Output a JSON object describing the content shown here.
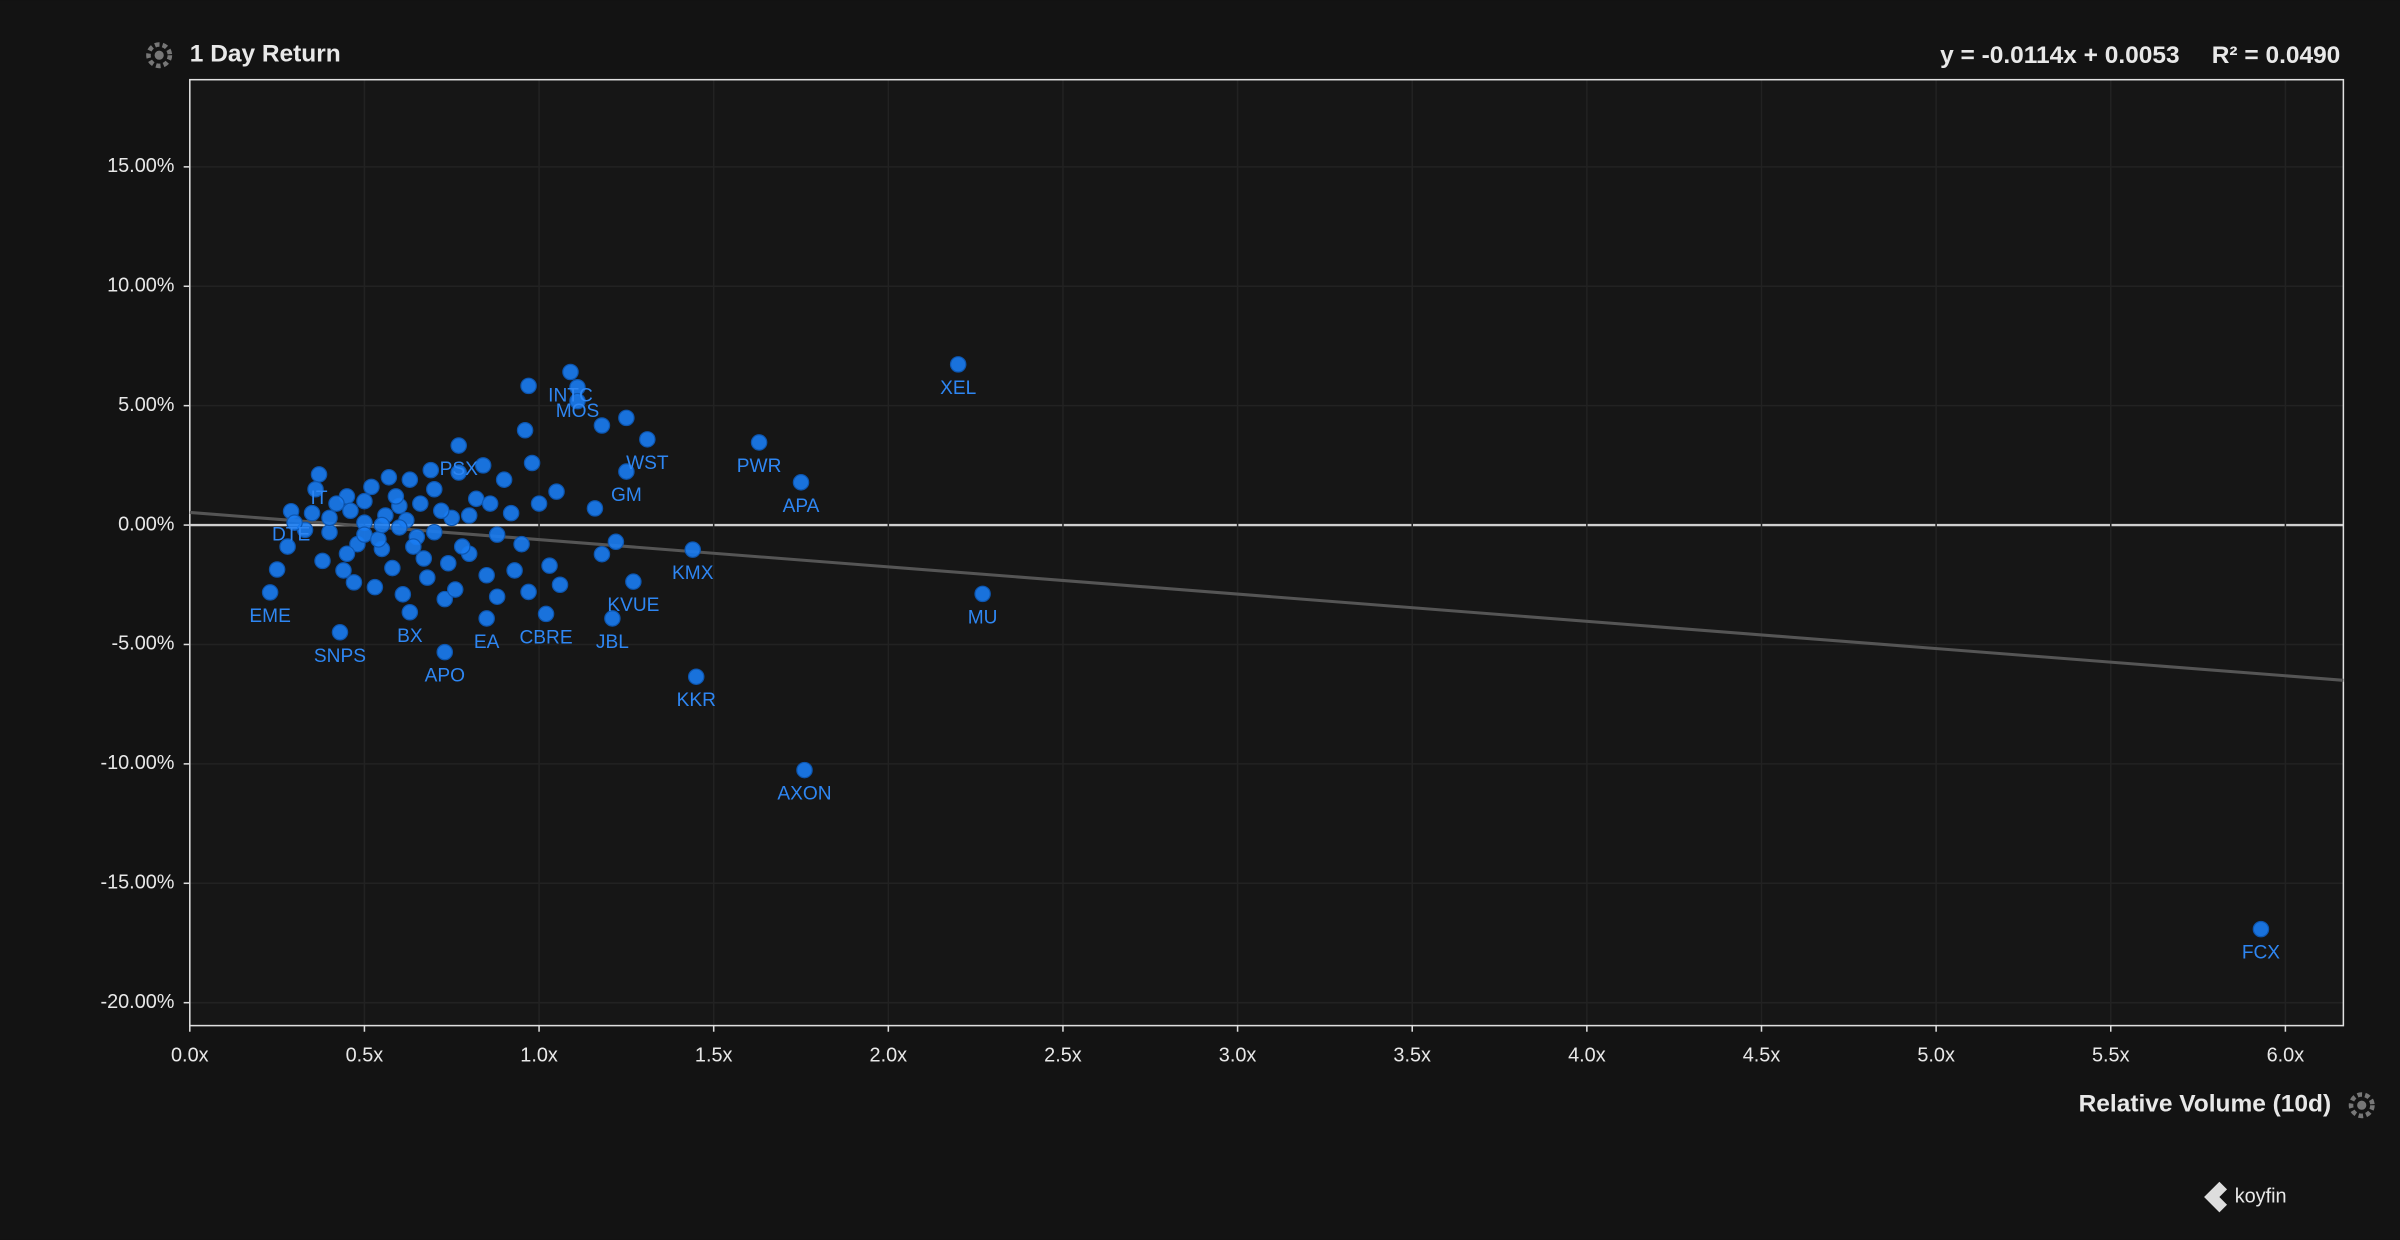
{
  "chart_data": {
    "type": "scatter",
    "title": "1 Day Return",
    "x_label": "Relative Volume (10d)",
    "equation": "y = -0.0114x + 0.0053",
    "r_squared": "R² = 0.0490",
    "brand": "koyfin",
    "xlim": [
      0,
      6.166
    ],
    "ylim": [
      -20.96,
      18.65
    ],
    "xticks": [
      {
        "value": 0,
        "label": "0.0x"
      },
      {
        "value": 0.5,
        "label": "0.5x"
      },
      {
        "value": 1,
        "label": "1.0x"
      },
      {
        "value": 1.5,
        "label": "1.5x"
      },
      {
        "value": 2,
        "label": "2.0x"
      },
      {
        "value": 2.5,
        "label": "2.5x"
      },
      {
        "value": 3,
        "label": "3.0x"
      },
      {
        "value": 3.5,
        "label": "3.5x"
      },
      {
        "value": 4,
        "label": "4.0x"
      },
      {
        "value": 4.5,
        "label": "4.5x"
      },
      {
        "value": 5,
        "label": "5.0x"
      },
      {
        "value": 5.5,
        "label": "5.5x"
      },
      {
        "value": 6,
        "label": "6.0x"
      }
    ],
    "yticks": [
      {
        "value": 15,
        "label": "15.00%"
      },
      {
        "value": 10,
        "label": "10.00%"
      },
      {
        "value": 5,
        "label": "5.00%"
      },
      {
        "value": 0,
        "label": "0.00%"
      },
      {
        "value": -5,
        "label": "-5.00%"
      },
      {
        "value": -10,
        "label": "-10.00%"
      },
      {
        "value": -15,
        "label": "-15.00%"
      },
      {
        "value": -20,
        "label": "-20.00%"
      }
    ],
    "grid": true,
    "trendline": {
      "x": [
        0,
        6.166
      ],
      "values": [
        0.53,
        -6.5
      ],
      "color": "#555555"
    },
    "series": [
      {
        "color": "#1a7cf2",
        "labels": [
          "INTC",
          "MOS",
          "XEL",
          "PSX",
          "WST",
          "PWR",
          "APA",
          "IT",
          "GM",
          "DTE",
          "KMX",
          "KVUE",
          "MU",
          "EME",
          "SNPS",
          "BX",
          "EA",
          "CBRE",
          "JBL",
          "APO",
          "KKR",
          "AXON",
          "FCX",
          null,
          null,
          null,
          null,
          null,
          null,
          null,
          null,
          null,
          null,
          null,
          null,
          null,
          null,
          null,
          null,
          null,
          null,
          null,
          null,
          null,
          null,
          null,
          null,
          null,
          null,
          null,
          null,
          null,
          null,
          null,
          null,
          null,
          null,
          null,
          null,
          null,
          null,
          null,
          null,
          null,
          null,
          null,
          null,
          null,
          null,
          null,
          null,
          null,
          null,
          null,
          null,
          null,
          null,
          null,
          null,
          null,
          null,
          null,
          null,
          null,
          null,
          null,
          null,
          null,
          null,
          null,
          null,
          null,
          null,
          null,
          null,
          null,
          null,
          null,
          null,
          null,
          null,
          null,
          null,
          null,
          null,
          null
        ],
        "x": [
          1.09,
          1.11,
          2.2,
          0.77,
          1.31,
          1.63,
          1.75,
          0.37,
          1.25,
          0.29,
          1.44,
          1.27,
          2.27,
          0.23,
          0.43,
          0.63,
          0.85,
          1.02,
          1.21,
          0.73,
          1.45,
          1.76,
          5.93,
          0.97,
          0.96,
          1.18,
          1.11,
          1.25,
          0.25,
          1.06,
          1.18,
          1.22,
          1.16,
          0.35,
          0.4,
          0.45,
          0.5,
          0.55,
          0.6,
          0.65,
          0.7,
          0.75,
          0.8,
          0.38,
          0.42,
          0.48,
          0.52,
          0.58,
          0.62,
          0.68,
          0.72,
          0.78,
          0.82,
          0.88,
          0.92,
          0.33,
          0.47,
          0.53,
          0.57,
          0.63,
          0.67,
          0.73,
          0.77,
          0.85,
          0.9,
          0.95,
          1.0,
          1.03,
          1.05,
          0.3,
          0.28,
          0.36,
          0.44,
          0.5,
          0.56,
          0.6,
          0.64,
          0.66,
          0.7,
          0.74,
          0.8,
          0.86,
          0.93,
          0.98,
          0.84,
          0.4,
          0.46,
          0.54,
          0.59,
          0.61,
          0.69,
          0.76,
          0.88,
          0.97,
          0.55,
          0.5,
          0.45
        ],
        "values": [
          6.41,
          5.77,
          6.73,
          3.33,
          3.59,
          3.46,
          1.79,
          2.12,
          2.24,
          0.58,
          -1.03,
          -2.37,
          -2.88,
          -2.82,
          -4.49,
          -3.65,
          -3.91,
          -3.72,
          -3.91,
          -5.32,
          -6.35,
          -10.26,
          -16.92,
          5.83,
          3.97,
          4.17,
          5.19,
          4.49,
          -1.86,
          -2.5,
          -1.22,
          -0.7,
          0.7,
          0.5,
          -0.3,
          1.2,
          0.1,
          -1.0,
          0.8,
          -0.5,
          1.5,
          0.3,
          -1.2,
          -1.5,
          0.9,
          -0.8,
          1.6,
          -1.8,
          0.2,
          -2.2,
          0.6,
          -0.9,
          1.1,
          -0.4,
          0.5,
          -0.2,
          -2.4,
          -2.6,
          2.0,
          1.9,
          -1.4,
          -3.1,
          2.2,
          -2.1,
          1.9,
          -0.8,
          0.9,
          -1.7,
          1.4,
          0.1,
          -0.9,
          1.5,
          -1.9,
          -0.4,
          0.4,
          -0.1,
          -0.9,
          0.9,
          -0.3,
          -1.6,
          0.4,
          0.9,
          -1.9,
          2.6,
          2.5,
          0.3,
          0.6,
          -0.6,
          1.2,
          -2.9,
          2.3,
          -2.7,
          -3.0,
          -2.8,
          0.0,
          1.0,
          -1.2
        ]
      }
    ]
  }
}
